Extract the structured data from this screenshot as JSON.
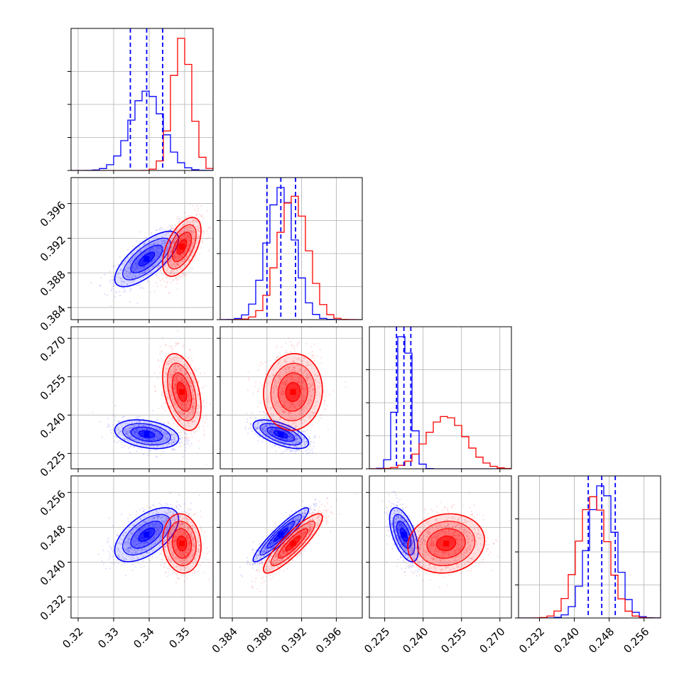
{
  "colors": {
    "series_1": "#0000ff",
    "series_2": "#ff0000",
    "grid": "#b0b0b0",
    "frame": "#000000"
  },
  "chart_data": {
    "type": "corner",
    "title": "",
    "grid": true,
    "parameters": [
      {
        "name": "",
        "range": [
          0.318,
          0.358
        ],
        "ticks": [
          0.32,
          0.33,
          0.34,
          0.35
        ],
        "tick_labels": [
          "0.32",
          "0.33",
          "0.34",
          "0.35"
        ]
      },
      {
        "name": "",
        "range": [
          0.3826,
          0.399
        ],
        "ticks": [
          0.384,
          0.388,
          0.392,
          0.396
        ],
        "tick_labels": [
          "0.384",
          "0.388",
          "0.392",
          "0.396"
        ]
      },
      {
        "name": "",
        "range": [
          0.219,
          0.2745
        ],
        "ticks": [
          0.225,
          0.24,
          0.255,
          0.27
        ],
        "tick_labels": [
          "0.225",
          "0.240",
          "0.255",
          "0.270"
        ]
      },
      {
        "name": "",
        "range": [
          0.2272,
          0.2598
        ],
        "ticks": [
          0.232,
          0.24,
          0.248,
          0.256
        ],
        "tick_labels": [
          "0.232",
          "0.240",
          "0.248",
          "0.256"
        ]
      }
    ],
    "series": [
      {
        "color": "#0000ff",
        "means": [
          0.3393,
          0.3896,
          0.2325,
          0.2463
        ],
        "sigmas": [
          0.0045,
          0.0016,
          0.0028,
          0.0031
        ],
        "quantile_lines": [
          [
            0.3347,
            0.3393,
            0.3438
          ],
          [
            0.388,
            0.3896,
            0.3913
          ],
          [
            0.2296,
            0.2325,
            0.2352
          ],
          [
            0.2432,
            0.2463,
            0.2494
          ]
        ],
        "correlations": [
          [
            1.0,
            0.72,
            -0.3,
            0.58
          ],
          [
            0.72,
            1.0,
            -0.62,
            0.93
          ],
          [
            -0.3,
            -0.62,
            1.0,
            -0.58
          ],
          [
            0.58,
            0.93,
            -0.58,
            1.0
          ]
        ]
      },
      {
        "color": "#ff0000",
        "means": [
          0.3492,
          0.391,
          0.249,
          0.2443
        ],
        "sigmas": [
          0.0027,
          0.0017,
          0.0075,
          0.0034
        ],
        "quantile_lines": [],
        "correlations": [
          [
            1.0,
            0.55,
            -0.4,
            -0.1
          ],
          [
            0.55,
            1.0,
            0.05,
            0.88
          ],
          [
            -0.4,
            0.05,
            1.0,
            0.1
          ],
          [
            -0.1,
            0.88,
            0.1,
            1.0
          ]
        ]
      }
    ]
  }
}
